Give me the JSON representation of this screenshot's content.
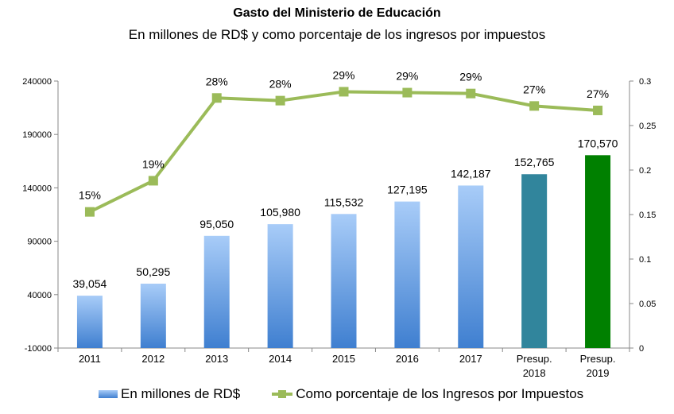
{
  "chart_data": {
    "type": "bar",
    "title": "Gasto del Ministerio de Educación",
    "subtitle": "En millones de RD$ y como porcentaje de los ingresos por impuestos",
    "categories": [
      [
        "2011"
      ],
      [
        "2012"
      ],
      [
        "2013"
      ],
      [
        "2014"
      ],
      [
        "2015"
      ],
      [
        "2016"
      ],
      [
        "2017"
      ],
      [
        "Presup.",
        "2018"
      ],
      [
        "Presup.",
        "2019"
      ]
    ],
    "y_left": {
      "ylim": [
        -10000,
        240000
      ],
      "ticks": [
        "-10000",
        "40000",
        "90000",
        "140000",
        "190000",
        "240000"
      ],
      "tick_values": [
        -10000,
        40000,
        90000,
        140000,
        190000,
        240000
      ]
    },
    "y_right": {
      "ylim": [
        0,
        0.3
      ],
      "ticks": [
        "0",
        "0.05",
        "0.1",
        "0.15",
        "0.2",
        "0.25",
        "0.3"
      ],
      "tick_values": [
        0,
        0.05,
        0.1,
        0.15,
        0.2,
        0.25,
        0.3
      ]
    },
    "series": [
      {
        "name": "En millones de RD$",
        "type": "bar",
        "axis": "left",
        "values": [
          39054,
          50295,
          95050,
          105980,
          115532,
          127195,
          142187,
          152765,
          170570
        ],
        "labels": [
          "39,054",
          "50,295",
          "95,050",
          "105,980",
          "115,532",
          "127,195",
          "142,187",
          "152,765",
          "170,570"
        ],
        "colors": [
          "#5b9bd5",
          "#5b9bd5",
          "#5b9bd5",
          "#5b9bd5",
          "#5b9bd5",
          "#5b9bd5",
          "#5b9bd5",
          "#31859c",
          "#008000"
        ]
      },
      {
        "name": "Como porcentaje de los Ingresos por Impuestos",
        "type": "line",
        "axis": "right",
        "values": [
          0.153,
          0.188,
          0.281,
          0.278,
          0.288,
          0.287,
          0.286,
          0.272,
          0.267
        ],
        "labels": [
          "15%",
          "19%",
          "28%",
          "28%",
          "29%",
          "29%",
          "29%",
          "27%",
          "27%"
        ],
        "color": "#9bbb59"
      }
    ],
    "grid": false,
    "legend_position": "bottom"
  }
}
